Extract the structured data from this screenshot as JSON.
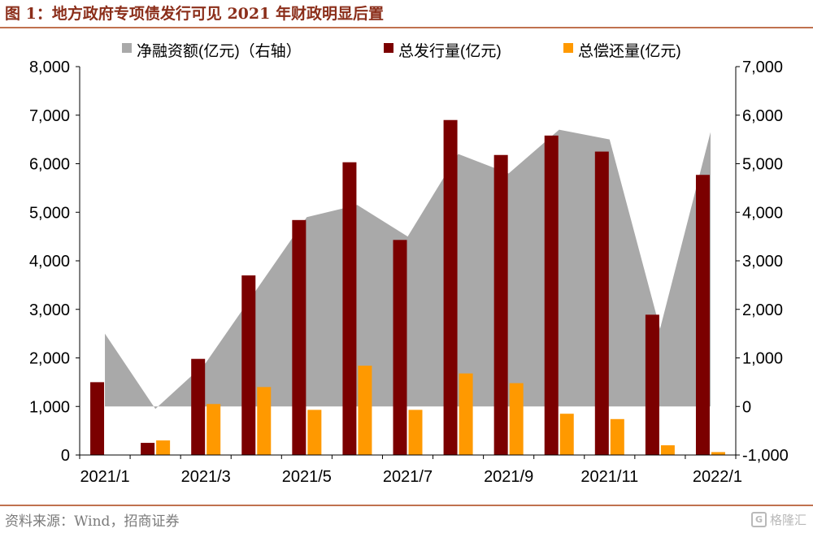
{
  "figure": {
    "title": "图 1：地方政府专项债发行可见 2021 年财政明显后置",
    "source": "资料来源：Wind，招商证券",
    "watermark": "格隆汇",
    "watermark_logo": "G"
  },
  "chart_data": {
    "type": "bar",
    "categories": [
      "2021/1",
      "2021/2",
      "2021/3",
      "2021/4",
      "2021/5",
      "2021/6",
      "2021/7",
      "2021/8",
      "2021/9",
      "2021/10",
      "2021/11",
      "2021/12",
      "2022/1"
    ],
    "x_tick_labels": [
      "2021/1",
      "2021/3",
      "2021/5",
      "2021/7",
      "2021/9",
      "2021/11",
      "2022/1"
    ],
    "y_left": {
      "min": 0,
      "max": 8000,
      "ticks": [
        0,
        1000,
        2000,
        3000,
        4000,
        5000,
        6000,
        7000,
        8000
      ],
      "tick_labels": [
        "0",
        "1,000",
        "2,000",
        "3,000",
        "4,000",
        "5,000",
        "6,000",
        "7,000",
        "8,000"
      ]
    },
    "y_right": {
      "min": -1000,
      "max": 7000,
      "ticks": [
        -1000,
        0,
        1000,
        2000,
        3000,
        4000,
        5000,
        6000,
        7000
      ],
      "tick_labels": [
        "-1,000",
        "0",
        "1,000",
        "2,000",
        "3,000",
        "4,000",
        "5,000",
        "6,000",
        "7,000"
      ]
    },
    "series": [
      {
        "name": "净融资额(亿元)（右轴）",
        "kind": "area",
        "axis": "right",
        "color": "#A9A9A9",
        "values": [
          1500,
          -50,
          900,
          2400,
          3900,
          4150,
          3500,
          5200,
          4800,
          5700,
          5500,
          1600,
          5650
        ]
      },
      {
        "name": "总发行量(亿元)",
        "kind": "bar",
        "axis": "left",
        "color": "#7B0000",
        "values": [
          1500,
          250,
          1980,
          3700,
          4840,
          6030,
          4430,
          6900,
          6180,
          6580,
          6250,
          2890,
          5770
        ]
      },
      {
        "name": "总偿还量(亿元)",
        "kind": "bar",
        "axis": "left",
        "color": "#FF9900",
        "values": [
          0,
          300,
          1050,
          1400,
          930,
          1840,
          930,
          1680,
          1480,
          850,
          740,
          200,
          60
        ]
      }
    ],
    "legend_position": "top",
    "grid": false
  }
}
